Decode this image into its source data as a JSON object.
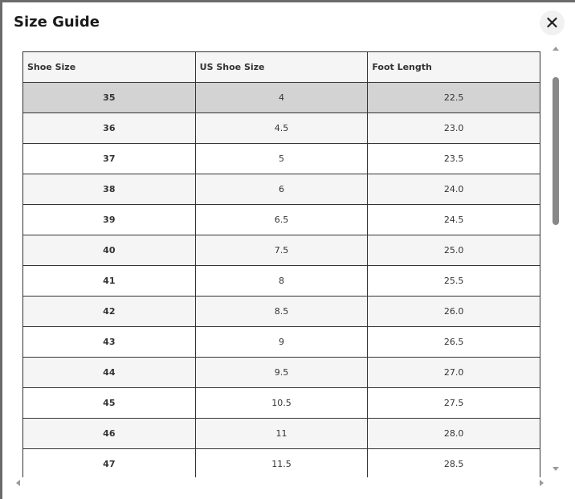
{
  "title": "Size Guide",
  "close_icon": "close-icon",
  "table": {
    "headers": [
      "Shoe Size",
      "US Shoe Size",
      "Foot Length"
    ],
    "selected_row": "35",
    "rows": [
      [
        "35",
        "4",
        "22.5"
      ],
      [
        "36",
        "4.5",
        "23.0"
      ],
      [
        "37",
        "5",
        "23.5"
      ],
      [
        "38",
        "6",
        "24.0"
      ],
      [
        "39",
        "6.5",
        "24.5"
      ],
      [
        "40",
        "7.5",
        "25.0"
      ],
      [
        "41",
        "8",
        "25.5"
      ],
      [
        "42",
        "8.5",
        "26.0"
      ],
      [
        "43",
        "9",
        "26.5"
      ],
      [
        "44",
        "9.5",
        "27.0"
      ],
      [
        "45",
        "10.5",
        "27.5"
      ],
      [
        "46",
        "11",
        "28.0"
      ],
      [
        "47",
        "11.5",
        "28.5"
      ]
    ]
  }
}
